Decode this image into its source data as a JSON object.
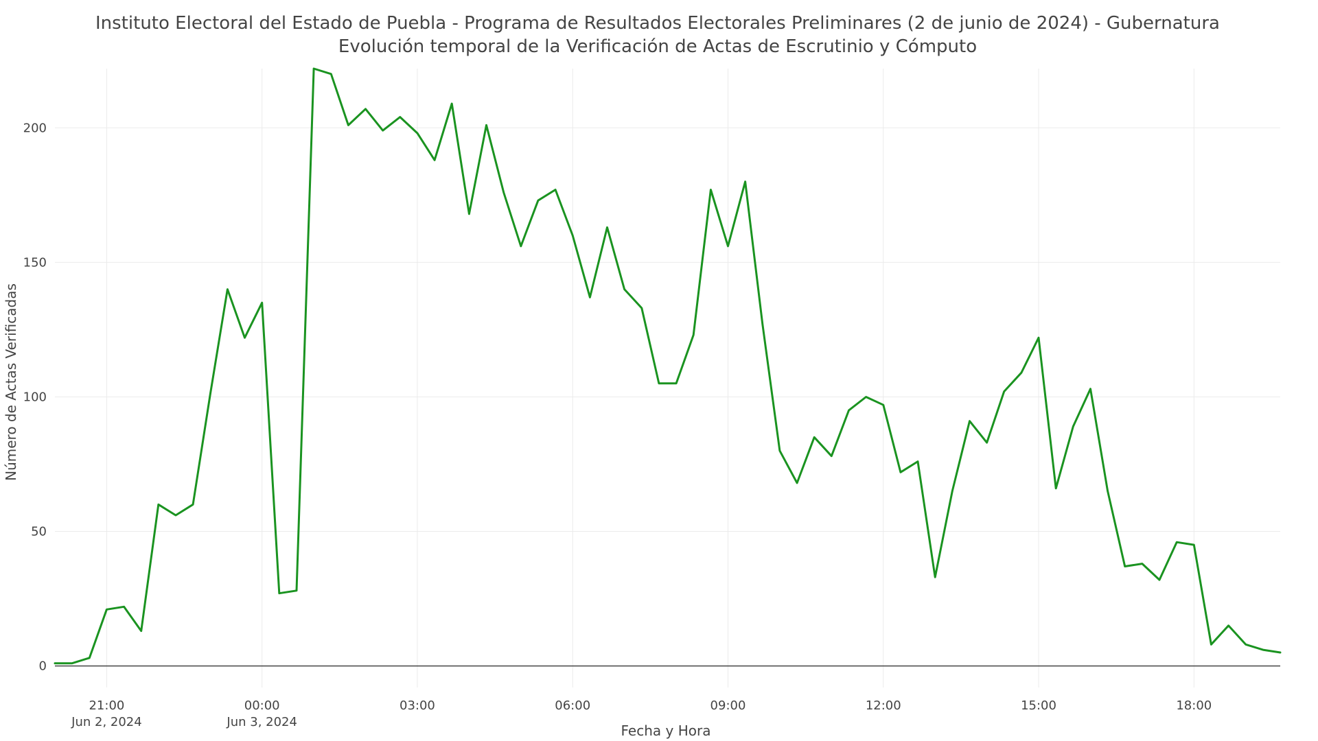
{
  "chart_data": {
    "type": "line",
    "title": "Instituto Electoral del Estado de Puebla - Programa de Resultados Electorales Preliminares (2 de junio de 2024) - Gubernatura",
    "subtitle": "Evolución temporal de la Verificación de Actas de Escrutinio y Cómputo",
    "xlabel": "Fecha y Hora",
    "ylabel": "Número de Actas Verificadas",
    "ylim": [
      -8,
      222
    ],
    "xlim": [
      "2024-06-02 20:00",
      "2024-06-03 19:40"
    ],
    "grid": true,
    "legend": "none",
    "y_ticks": [
      0,
      50,
      100,
      150,
      200
    ],
    "x_ticks": [
      {
        "value": "2024-06-02 21:00",
        "label": "21:00",
        "sublabel": "Jun 2, 2024"
      },
      {
        "value": "2024-06-03 00:00",
        "label": "00:00",
        "sublabel": "Jun 3, 2024"
      },
      {
        "value": "2024-06-03 03:00",
        "label": "03:00",
        "sublabel": ""
      },
      {
        "value": "2024-06-03 06:00",
        "label": "06:00",
        "sublabel": ""
      },
      {
        "value": "2024-06-03 09:00",
        "label": "09:00",
        "sublabel": ""
      },
      {
        "value": "2024-06-03 12:00",
        "label": "12:00",
        "sublabel": ""
      },
      {
        "value": "2024-06-03 15:00",
        "label": "15:00",
        "sublabel": ""
      },
      {
        "value": "2024-06-03 18:00",
        "label": "18:00",
        "sublabel": ""
      }
    ],
    "colors": {
      "line": "#1a9320",
      "grid": "#ebebeb",
      "zeroline": "#444444",
      "text": "#444444"
    },
    "series": [
      {
        "x": [
          "2024-06-02 20:00",
          "2024-06-02 20:20",
          "2024-06-02 20:40",
          "2024-06-02 21:00",
          "2024-06-02 21:20",
          "2024-06-02 21:40",
          "2024-06-02 22:00",
          "2024-06-02 22:20",
          "2024-06-02 22:40",
          "2024-06-02 23:00",
          "2024-06-02 23:20",
          "2024-06-02 23:40",
          "2024-06-03 00:00",
          "2024-06-03 00:20",
          "2024-06-03 00:40",
          "2024-06-03 01:00",
          "2024-06-03 01:20",
          "2024-06-03 01:40",
          "2024-06-03 02:00",
          "2024-06-03 02:20",
          "2024-06-03 02:40",
          "2024-06-03 03:00",
          "2024-06-03 03:20",
          "2024-06-03 03:40",
          "2024-06-03 04:00",
          "2024-06-03 04:20",
          "2024-06-03 04:40",
          "2024-06-03 05:00",
          "2024-06-03 05:20",
          "2024-06-03 05:40",
          "2024-06-03 06:00",
          "2024-06-03 06:20",
          "2024-06-03 06:40",
          "2024-06-03 07:00",
          "2024-06-03 07:20",
          "2024-06-03 07:40",
          "2024-06-03 08:00",
          "2024-06-03 08:20",
          "2024-06-03 08:40",
          "2024-06-03 09:00",
          "2024-06-03 09:20",
          "2024-06-03 09:40",
          "2024-06-03 10:00",
          "2024-06-03 10:20",
          "2024-06-03 10:40",
          "2024-06-03 11:00",
          "2024-06-03 11:20",
          "2024-06-03 11:40",
          "2024-06-03 12:00",
          "2024-06-03 12:20",
          "2024-06-03 12:40",
          "2024-06-03 13:00",
          "2024-06-03 13:20",
          "2024-06-03 13:40",
          "2024-06-03 14:00",
          "2024-06-03 14:20",
          "2024-06-03 14:40",
          "2024-06-03 15:00",
          "2024-06-03 15:20",
          "2024-06-03 15:40",
          "2024-06-03 16:00",
          "2024-06-03 16:20",
          "2024-06-03 16:40",
          "2024-06-03 17:00",
          "2024-06-03 17:20",
          "2024-06-03 17:40",
          "2024-06-03 18:00",
          "2024-06-03 18:20",
          "2024-06-03 18:40",
          "2024-06-03 19:00",
          "2024-06-03 19:20",
          "2024-06-03 19:40"
        ],
        "values": [
          1,
          1,
          3,
          21,
          22,
          13,
          60,
          56,
          60,
          101,
          140,
          122,
          135,
          27,
          28,
          222,
          220,
          201,
          207,
          199,
          204,
          198,
          188,
          209,
          168,
          201,
          176,
          156,
          173,
          177,
          160,
          137,
          163,
          140,
          133,
          105,
          105,
          123,
          177,
          156,
          180,
          127,
          80,
          68,
          85,
          78,
          95,
          100,
          97,
          72,
          76,
          33,
          65,
          91,
          83,
          102,
          109,
          122,
          66,
          89,
          103,
          65,
          37,
          38,
          32,
          46,
          45,
          8,
          15,
          8,
          6,
          5
        ]
      }
    ]
  }
}
